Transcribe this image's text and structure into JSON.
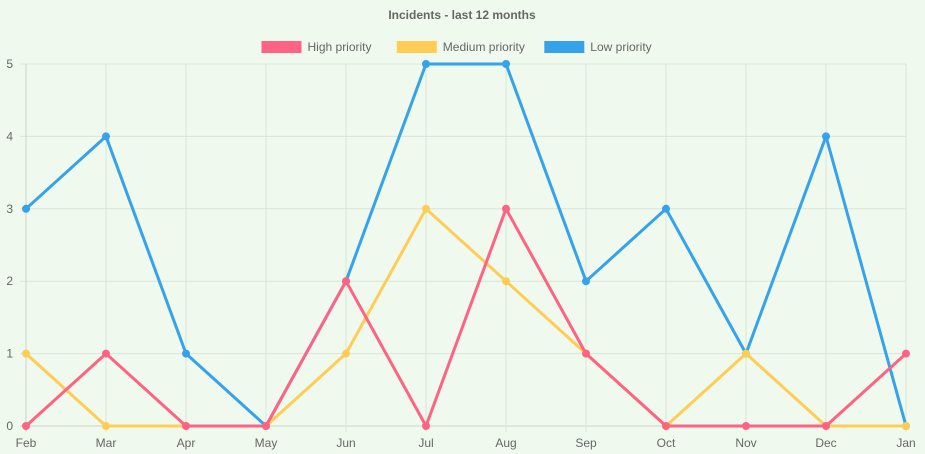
{
  "chart_data": {
    "type": "line",
    "title": "Incidents - last 12 months",
    "categories": [
      "Feb",
      "Mar",
      "Apr",
      "May",
      "Jun",
      "Jul",
      "Aug",
      "Sep",
      "Oct",
      "Nov",
      "Dec",
      "Jan"
    ],
    "ylim": [
      0,
      5
    ],
    "yticks": [
      "0",
      "1",
      "2",
      "3",
      "4",
      "5"
    ],
    "grid": true,
    "legend_position": "top",
    "xlabel": "",
    "ylabel": "",
    "series": [
      {
        "name": "High priority",
        "color": "#ff6384",
        "values": [
          0,
          1,
          0,
          0,
          2,
          0,
          3,
          1,
          0,
          0,
          0,
          1
        ]
      },
      {
        "name": "Medium priority",
        "color": "#ffcd56",
        "values": [
          1,
          0,
          0,
          0,
          1,
          3,
          2,
          1,
          0,
          1,
          0,
          0
        ]
      },
      {
        "name": "Low priority",
        "color": "#36a2eb",
        "values": [
          3,
          4,
          1,
          0,
          2,
          5,
          5,
          2,
          3,
          1,
          4,
          0
        ]
      }
    ]
  }
}
